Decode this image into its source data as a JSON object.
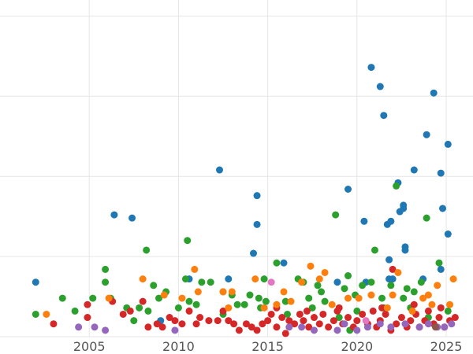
{
  "chart_data": {
    "type": "scatter",
    "title": "",
    "xlabel": "",
    "ylabel": "",
    "xlim": [
      2000,
      2026.5
    ],
    "ylim": [
      0,
      105
    ],
    "x_ticks": [
      {
        "value": 2005,
        "label": "2005"
      },
      {
        "value": 2010,
        "label": "2010"
      },
      {
        "value": 2015,
        "label": "2015"
      },
      {
        "value": 2020,
        "label": "2020"
      },
      {
        "value": 2025,
        "label": "2025"
      }
    ],
    "y_gridlines": [
      0,
      25,
      50,
      75,
      100
    ],
    "grid": true,
    "legend": "none",
    "series": [
      {
        "color": "#1f77b4",
        "points": [
          [
            2002.0,
            17
          ],
          [
            2006.4,
            38
          ],
          [
            2007.4,
            37
          ],
          [
            2009.0,
            5
          ],
          [
            2010.6,
            18
          ],
          [
            2012.3,
            52
          ],
          [
            2012.8,
            18
          ],
          [
            2014.2,
            26
          ],
          [
            2014.4,
            44
          ],
          [
            2014.4,
            35
          ],
          [
            2015.9,
            23
          ],
          [
            2018.9,
            17
          ],
          [
            2019.5,
            46
          ],
          [
            2020.4,
            36
          ],
          [
            2020.5,
            17
          ],
          [
            2020.8,
            84
          ],
          [
            2021.3,
            78
          ],
          [
            2021.5,
            69
          ],
          [
            2021.7,
            35
          ],
          [
            2021.8,
            24
          ],
          [
            2021.9,
            36
          ],
          [
            2021.8,
            18
          ],
          [
            2022.0,
            18
          ],
          [
            2022.3,
            48
          ],
          [
            2022.4,
            39
          ],
          [
            2022.6,
            41
          ],
          [
            2022.6,
            40
          ],
          [
            2022.7,
            28
          ],
          [
            2022.7,
            27
          ],
          [
            2023.2,
            52
          ],
          [
            2023.7,
            18
          ],
          [
            2023.9,
            63
          ],
          [
            2024.3,
            76
          ],
          [
            2024.7,
            21
          ],
          [
            2024.7,
            51
          ],
          [
            2024.8,
            40
          ],
          [
            2025.1,
            60
          ],
          [
            2025.1,
            32
          ]
        ]
      },
      {
        "color": "#2ca02c",
        "points": [
          [
            2002.0,
            7
          ],
          [
            2003.5,
            12
          ],
          [
            2004.2,
            8
          ],
          [
            2005.2,
            12
          ],
          [
            2005.9,
            21
          ],
          [
            2005.9,
            17
          ],
          [
            2006.2,
            12
          ],
          [
            2007.1,
            9
          ],
          [
            2007.5,
            5
          ],
          [
            2007.8,
            9
          ],
          [
            2008.2,
            27
          ],
          [
            2008.3,
            8
          ],
          [
            2008.6,
            16
          ],
          [
            2009.3,
            14
          ],
          [
            2010.0,
            9
          ],
          [
            2010.4,
            18
          ],
          [
            2010.5,
            30
          ],
          [
            2010.6,
            11
          ],
          [
            2011.3,
            17
          ],
          [
            2011.8,
            17
          ],
          [
            2012.5,
            7
          ],
          [
            2013.0,
            13
          ],
          [
            2013.3,
            10
          ],
          [
            2013.7,
            10
          ],
          [
            2014.0,
            13
          ],
          [
            2014.5,
            12
          ],
          [
            2014.8,
            18
          ],
          [
            2014.9,
            11
          ],
          [
            2015.5,
            23
          ],
          [
            2016.0,
            11
          ],
          [
            2016.7,
            18
          ],
          [
            2017.0,
            17
          ],
          [
            2017.3,
            12
          ],
          [
            2017.8,
            16
          ],
          [
            2018.2,
            11
          ],
          [
            2018.8,
            38
          ],
          [
            2019.3,
            15
          ],
          [
            2019.5,
            19
          ],
          [
            2019.9,
            13
          ],
          [
            2020.3,
            16
          ],
          [
            2020.8,
            17
          ],
          [
            2021.0,
            27
          ],
          [
            2021.4,
            12
          ],
          [
            2021.9,
            16
          ],
          [
            2022.2,
            47
          ],
          [
            2022.6,
            12
          ],
          [
            2023.2,
            14
          ],
          [
            2023.6,
            17
          ],
          [
            2023.9,
            37
          ],
          [
            2024.6,
            23
          ],
          [
            2025.1,
            8
          ],
          [
            2023.0,
            9
          ],
          [
            2020.0,
            8
          ],
          [
            2017.5,
            9
          ],
          [
            2016.1,
            7
          ],
          [
            2014.6,
            9
          ],
          [
            2019.0,
            6
          ],
          [
            2021.5,
            9
          ],
          [
            2024.0,
            6
          ],
          [
            2019.6,
            2
          ],
          [
            2012.5,
            14
          ],
          [
            2011.0,
            10
          ],
          [
            2008.9,
            12
          ],
          [
            2018.0,
            14
          ],
          [
            2022.8,
            15
          ]
        ]
      },
      {
        "color": "#d62728",
        "points": [
          [
            2003.0,
            4
          ],
          [
            2004.9,
            10
          ],
          [
            2004.9,
            6
          ],
          [
            2006.3,
            11
          ],
          [
            2006.9,
            7
          ],
          [
            2007.3,
            8
          ],
          [
            2008.0,
            11
          ],
          [
            2008.3,
            3
          ],
          [
            2008.8,
            4
          ],
          [
            2009.1,
            3
          ],
          [
            2009.5,
            6
          ],
          [
            2009.8,
            5
          ],
          [
            2010.2,
            4
          ],
          [
            2010.6,
            8
          ],
          [
            2011.0,
            4
          ],
          [
            2011.2,
            6
          ],
          [
            2011.7,
            5
          ],
          [
            2012.2,
            5
          ],
          [
            2012.5,
            8
          ],
          [
            2012.8,
            5
          ],
          [
            2013.1,
            4
          ],
          [
            2013.4,
            2
          ],
          [
            2013.8,
            4
          ],
          [
            2014.1,
            3
          ],
          [
            2014.4,
            2
          ],
          [
            2014.7,
            4
          ],
          [
            2015.0,
            5
          ],
          [
            2015.2,
            7
          ],
          [
            2015.5,
            3
          ],
          [
            2015.8,
            6
          ],
          [
            2016.0,
            1
          ],
          [
            2016.2,
            5
          ],
          [
            2016.5,
            4
          ],
          [
            2016.8,
            7
          ],
          [
            2017.0,
            5
          ],
          [
            2017.3,
            3
          ],
          [
            2017.6,
            6
          ],
          [
            2017.9,
            4
          ],
          [
            2018.1,
            7
          ],
          [
            2018.4,
            3
          ],
          [
            2018.7,
            5
          ],
          [
            2018.9,
            8
          ],
          [
            2019.2,
            4
          ],
          [
            2019.5,
            6
          ],
          [
            2019.8,
            3
          ],
          [
            2020.0,
            5
          ],
          [
            2020.3,
            7
          ],
          [
            2020.6,
            4
          ],
          [
            2020.9,
            8
          ],
          [
            2021.1,
            3
          ],
          [
            2021.3,
            5
          ],
          [
            2021.6,
            7
          ],
          [
            2021.9,
            2
          ],
          [
            2022.0,
            21
          ],
          [
            2022.2,
            4
          ],
          [
            2022.5,
            6
          ],
          [
            2022.8,
            3
          ],
          [
            2023.0,
            5
          ],
          [
            2023.3,
            7
          ],
          [
            2023.5,
            3
          ],
          [
            2023.8,
            5
          ],
          [
            2024.0,
            8
          ],
          [
            2024.3,
            4
          ],
          [
            2024.6,
            6
          ],
          [
            2024.9,
            3
          ],
          [
            2025.2,
            5
          ],
          [
            2025.5,
            6
          ],
          [
            2015.5,
            9
          ],
          [
            2017.2,
            8
          ],
          [
            2019.0,
            9
          ],
          [
            2021.4,
            9
          ],
          [
            2023.2,
            10
          ],
          [
            2024.7,
            9
          ]
        ]
      },
      {
        "color": "#ff7f0e",
        "points": [
          [
            2002.6,
            7
          ],
          [
            2006.1,
            12
          ],
          [
            2008.0,
            18
          ],
          [
            2009.2,
            13
          ],
          [
            2010.2,
            12
          ],
          [
            2010.9,
            21
          ],
          [
            2011.1,
            14
          ],
          [
            2012.5,
            14
          ],
          [
            2012.8,
            9
          ],
          [
            2013.0,
            14
          ],
          [
            2014.3,
            18
          ],
          [
            2014.8,
            9
          ],
          [
            2015.5,
            10
          ],
          [
            2015.9,
            14
          ],
          [
            2016.9,
            17
          ],
          [
            2017.4,
            22
          ],
          [
            2017.9,
            18
          ],
          [
            2018.2,
            20
          ],
          [
            2019.5,
            12
          ],
          [
            2020.1,
            12
          ],
          [
            2020.8,
            13
          ],
          [
            2021.7,
            9
          ],
          [
            2022.0,
            13
          ],
          [
            2022.3,
            20
          ],
          [
            2023.7,
            12
          ],
          [
            2024.0,
            13
          ],
          [
            2024.2,
            10
          ],
          [
            2024.5,
            16
          ],
          [
            2025.2,
            10
          ],
          [
            2025.4,
            18
          ],
          [
            2016.3,
            11
          ],
          [
            2018.6,
            10
          ],
          [
            2023.1,
            8
          ]
        ]
      },
      {
        "color": "#9467bd",
        "points": [
          [
            2004.4,
            3
          ],
          [
            2005.3,
            3
          ],
          [
            2005.9,
            2
          ],
          [
            2009.8,
            2
          ],
          [
            2016.2,
            3
          ],
          [
            2016.9,
            3
          ],
          [
            2017.6,
            2
          ],
          [
            2018.9,
            2
          ],
          [
            2020.0,
            2
          ],
          [
            2020.6,
            3
          ],
          [
            2021.9,
            3
          ],
          [
            2022.7,
            4
          ],
          [
            2023.5,
            3
          ],
          [
            2024.0,
            4
          ],
          [
            2024.5,
            3
          ],
          [
            2024.9,
            3
          ],
          [
            2025.3,
            4
          ],
          [
            2019.3,
            4
          ],
          [
            2021.3,
            4
          ]
        ]
      },
      {
        "color": "#e377c2",
        "points": [
          [
            2015.2,
            17
          ],
          [
            2020.5,
            5
          ]
        ]
      },
      {
        "color": "#8c564b",
        "points": [
          [
            2024.4,
            3
          ]
        ]
      }
    ]
  }
}
